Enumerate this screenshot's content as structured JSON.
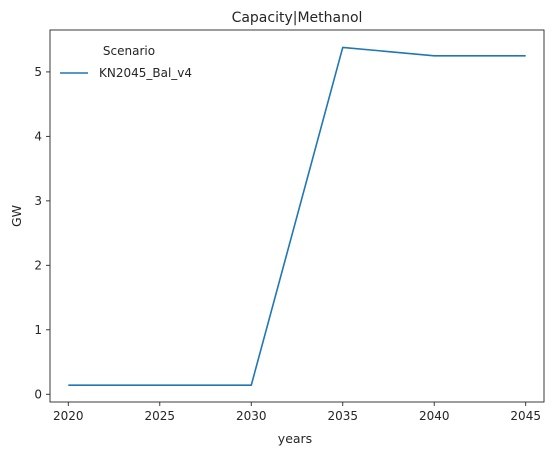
{
  "chart_data": {
    "type": "line",
    "title": "Capacity|Methanol",
    "xlabel": "years",
    "ylabel": "GW",
    "x": [
      2020,
      2025,
      2030,
      2035,
      2040,
      2045
    ],
    "xticks": [
      "2020",
      "2025",
      "2030",
      "2035",
      "2040",
      "2045"
    ],
    "yticks": [
      "0",
      "1",
      "2",
      "3",
      "4",
      "5"
    ],
    "xlim": [
      2019,
      2046
    ],
    "ylim": [
      -0.12,
      5.65
    ],
    "grid": false,
    "legend": {
      "title": "Scenario",
      "placement": "top-left"
    },
    "series": [
      {
        "name": "KN2045_Bal_v4",
        "color": "#1f77b4",
        "values": [
          0.14,
          0.14,
          0.14,
          5.38,
          5.25,
          5.25
        ]
      }
    ]
  }
}
